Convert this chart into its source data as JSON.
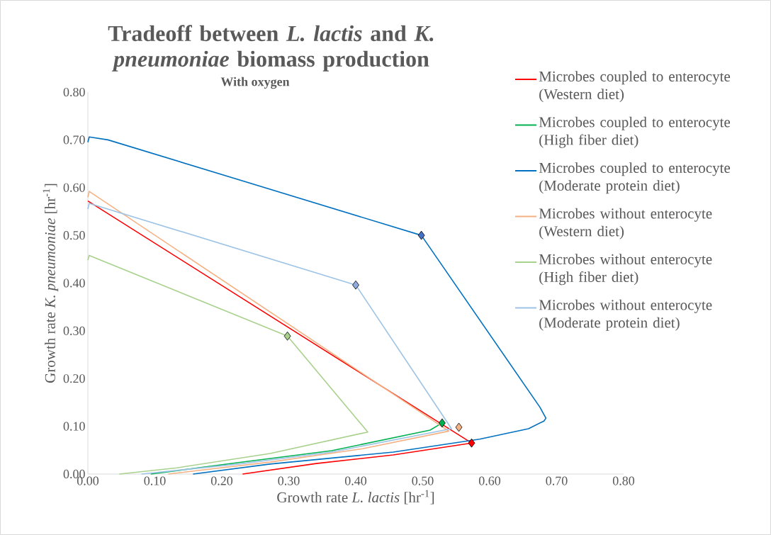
{
  "chart_data": {
    "type": "line",
    "title": "Tradeoff between *L. lactis* and *K. pneumoniae* biomass production",
    "subtitle": "With oxygen",
    "xlabel": "Growth rate *L. lactis* [hr$^{-1}$]",
    "ylabel": "Growth rate *K. pneumoniae* [hr$^{-1}$]",
    "xlim": [
      0,
      0.8
    ],
    "ylim": [
      0,
      0.8
    ],
    "xticks": [
      {
        "value": 0,
        "label": "0.00"
      },
      {
        "value": 0.1,
        "label": "0.10"
      },
      {
        "value": 0.2,
        "label": "0.20"
      },
      {
        "value": 0.3,
        "label": "0.30"
      },
      {
        "value": 0.4,
        "label": "0.40"
      },
      {
        "value": 0.5,
        "label": "0.50"
      },
      {
        "value": 0.6,
        "label": "0.60"
      },
      {
        "value": 0.7,
        "label": "0.70"
      },
      {
        "value": 0.8,
        "label": "0.80"
      }
    ],
    "yticks": [
      {
        "value": 0,
        "label": "0.00"
      },
      {
        "value": 0.1,
        "label": "0.10"
      },
      {
        "value": 0.2,
        "label": "0.20"
      },
      {
        "value": 0.3,
        "label": "0.30"
      },
      {
        "value": 0.4,
        "label": "0.40"
      },
      {
        "value": 0.5,
        "label": "0.50"
      },
      {
        "value": 0.6,
        "label": "0.60"
      },
      {
        "value": 0.7,
        "label": "0.70"
      },
      {
        "value": 0.8,
        "label": "0.80"
      }
    ],
    "grid": false,
    "legend": "right",
    "line_style": "solid",
    "series": [
      {
        "name": "Microbes coupled to enterocyte (Western diet)",
        "color": "#ff0000",
        "x": [
          0,
          0.573,
          0.456,
          0.341,
          0.231
        ],
        "values": [
          0.572,
          0.065,
          0.04,
          0.022,
          0
        ]
      },
      {
        "name": "Microbes coupled to enterocyte (High fiber diet)",
        "color": "#00b050",
        "x": [
          0.529,
          0.511,
          0.364,
          0.225,
          0.094
        ],
        "values": [
          0.107,
          0.092,
          0.049,
          0.024,
          0
        ]
      },
      {
        "name": "Microbes coupled to enterocyte (Moderate protein diet)",
        "color": "#0070c0",
        "x": [
          0,
          0.002,
          0.03,
          0.498,
          0.675,
          0.684,
          0.681,
          0.658,
          0.585,
          0.456,
          0.272,
          0.157
        ],
        "values": [
          0.695,
          0.706,
          0.7,
          0.5,
          0.14,
          0.117,
          0.111,
          0.095,
          0.073,
          0.046,
          0.021,
          0
        ]
      },
      {
        "name": "Microbes without enterocyte (Western diet)",
        "color": "#f4b183",
        "x": [
          0,
          0.002,
          0.539,
          0.41,
          0.272,
          0.12
        ],
        "values": [
          0.58,
          0.592,
          0.09,
          0.053,
          0.025,
          0
        ]
      },
      {
        "name": "Microbes without enterocyte (High fiber diet)",
        "color": "#a9d18e",
        "x": [
          0,
          0.002,
          0.298,
          0.418,
          0.272,
          0.133,
          0.047
        ],
        "values": [
          0.448,
          0.458,
          0.289,
          0.088,
          0.043,
          0.013,
          0
        ]
      },
      {
        "name": "Microbes without enterocyte (Moderate protein diet)",
        "color": "#9dc3e6",
        "x": [
          0,
          0.002,
          0.4,
          0.543,
          0.364,
          0.225,
          0.08
        ],
        "values": [
          0.555,
          0.567,
          0.396,
          0.095,
          0.046,
          0.021,
          0
        ]
      },
      {
        "type": "scatter",
        "marker": "diamond",
        "color": "#ff0000",
        "x": [
          0.573
        ],
        "values": [
          0.065
        ]
      },
      {
        "type": "scatter",
        "marker": "diamond",
        "color": "#00b050",
        "x": [
          0.529
        ],
        "values": [
          0.107
        ]
      },
      {
        "type": "scatter",
        "marker": "diamond",
        "color": "#4472c4",
        "x": [
          0.498
        ],
        "values": [
          0.5
        ]
      },
      {
        "type": "scatter",
        "marker": "diamond",
        "color": "#f4b183",
        "x": [
          0.554
        ],
        "values": [
          0.098
        ]
      },
      {
        "type": "scatter",
        "marker": "diamond",
        "color": "#a9d18e",
        "x": [
          0.298
        ],
        "values": [
          0.289
        ]
      },
      {
        "type": "scatter",
        "marker": "diamond",
        "color": "#8faadc",
        "x": [
          0.4
        ],
        "values": [
          0.396
        ]
      }
    ]
  }
}
